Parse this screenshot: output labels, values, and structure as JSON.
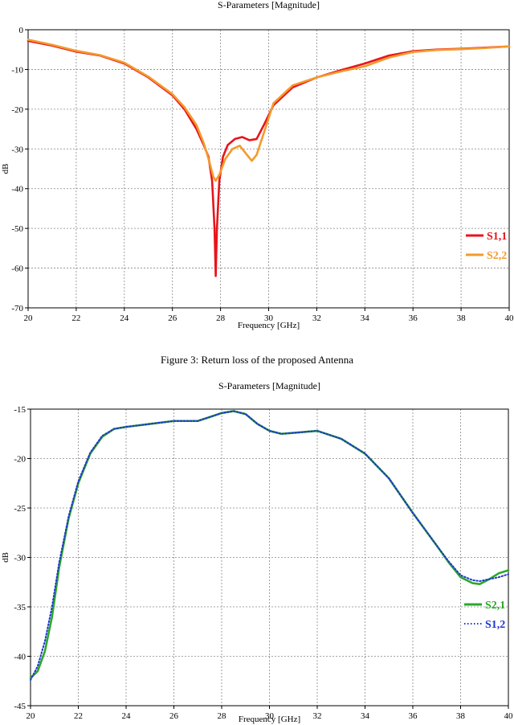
{
  "caption": "Figure 3: Return loss of the proposed Antenna",
  "chart_data": [
    {
      "type": "line",
      "title": "S-Parameters [Magnitude]",
      "xlabel": "Frequency [GHz]",
      "ylabel": "dB",
      "xlim": [
        20,
        40
      ],
      "ylim": [
        -70,
        0
      ],
      "xticks": [
        "20",
        "22",
        "24",
        "26",
        "28",
        "30",
        "32",
        "34",
        "36",
        "38",
        "40"
      ],
      "yticks": [
        "0",
        "-10",
        "-20",
        "-30",
        "-40",
        "-50",
        "-60",
        "-70"
      ],
      "grid": true,
      "legend_position": "bottom-right",
      "series": [
        {
          "name": "S1,1",
          "color": "#e8141b",
          "style": "solid",
          "points": [
            [
              20,
              -2.8
            ],
            [
              21,
              -4
            ],
            [
              22,
              -5.5
            ],
            [
              23,
              -6.5
            ],
            [
              24,
              -8.5
            ],
            [
              25,
              -12
            ],
            [
              26,
              -16.5
            ],
            [
              26.5,
              -20
            ],
            [
              27,
              -25
            ],
            [
              27.3,
              -29
            ],
            [
              27.5,
              -32
            ],
            [
              27.65,
              -38
            ],
            [
              27.75,
              -50
            ],
            [
              27.8,
              -62
            ],
            [
              27.85,
              -50
            ],
            [
              27.95,
              -38
            ],
            [
              28.1,
              -32
            ],
            [
              28.3,
              -29
            ],
            [
              28.6,
              -27.5
            ],
            [
              28.9,
              -27
            ],
            [
              29.2,
              -27.8
            ],
            [
              29.5,
              -27.5
            ],
            [
              29.8,
              -24
            ],
            [
              30.2,
              -19
            ],
            [
              31,
              -14.5
            ],
            [
              32,
              -12
            ],
            [
              33,
              -10.2
            ],
            [
              34,
              -8.5
            ],
            [
              35,
              -6.5
            ],
            [
              36,
              -5.4
            ],
            [
              37,
              -5
            ],
            [
              38,
              -4.8
            ],
            [
              39,
              -4.5
            ],
            [
              40,
              -4.2
            ]
          ]
        },
        {
          "name": "S2,2",
          "color": "#f39a2c",
          "style": "solid",
          "points": [
            [
              20,
              -2.5
            ],
            [
              21,
              -3.8
            ],
            [
              22,
              -5.3
            ],
            [
              23,
              -6.4
            ],
            [
              24,
              -8.3
            ],
            [
              25,
              -11.8
            ],
            [
              26,
              -16.2
            ],
            [
              26.5,
              -19.5
            ],
            [
              27,
              -24
            ],
            [
              27.3,
              -28.5
            ],
            [
              27.5,
              -32.5
            ],
            [
              27.7,
              -37
            ],
            [
              27.8,
              -38
            ],
            [
              27.95,
              -36.5
            ],
            [
              28.2,
              -32.5
            ],
            [
              28.5,
              -30
            ],
            [
              28.8,
              -29.2
            ],
            [
              29.1,
              -31.5
            ],
            [
              29.3,
              -33
            ],
            [
              29.5,
              -31.5
            ],
            [
              29.8,
              -26
            ],
            [
              30.2,
              -18.5
            ],
            [
              31,
              -14
            ],
            [
              32,
              -12
            ],
            [
              33,
              -10.5
            ],
            [
              34,
              -9.2
            ],
            [
              35,
              -7
            ],
            [
              36,
              -5.6
            ],
            [
              37,
              -5.1
            ],
            [
              38,
              -4.9
            ],
            [
              39,
              -4.6
            ],
            [
              40,
              -4.2
            ]
          ]
        }
      ]
    },
    {
      "type": "line",
      "title": "S-Parameters [Magnitude]",
      "xlabel": "Frequency [GHz]",
      "ylabel": "dB",
      "xlim": [
        20,
        40
      ],
      "ylim": [
        -45,
        -15
      ],
      "xticks": [
        "20",
        "22",
        "24",
        "26",
        "28",
        "30",
        "32",
        "34",
        "36",
        "38",
        "40"
      ],
      "yticks": [
        "-15",
        "-20",
        "-25",
        "-30",
        "-35",
        "-40",
        "-45"
      ],
      "grid": true,
      "legend_position": "bottom-right",
      "series": [
        {
          "name": "S2,1",
          "color": "#2aa82a",
          "style": "solid",
          "points": [
            [
              20,
              -42.2
            ],
            [
              20.3,
              -41.5
            ],
            [
              20.6,
              -39.5
            ],
            [
              20.9,
              -36
            ],
            [
              21.2,
              -31
            ],
            [
              21.6,
              -26
            ],
            [
              22,
              -22.5
            ],
            [
              22.5,
              -19.5
            ],
            [
              23,
              -17.8
            ],
            [
              23.5,
              -17
            ],
            [
              24,
              -16.8
            ],
            [
              25,
              -16.5
            ],
            [
              26,
              -16.2
            ],
            [
              27,
              -16.2
            ],
            [
              27.5,
              -15.8
            ],
            [
              28,
              -15.4
            ],
            [
              28.5,
              -15.2
            ],
            [
              29,
              -15.5
            ],
            [
              29.5,
              -16.5
            ],
            [
              30,
              -17.2
            ],
            [
              30.5,
              -17.5
            ],
            [
              31,
              -17.4
            ],
            [
              32,
              -17.2
            ],
            [
              33,
              -18
            ],
            [
              34,
              -19.5
            ],
            [
              35,
              -22
            ],
            [
              36,
              -25.5
            ],
            [
              37,
              -28.8
            ],
            [
              37.5,
              -30.5
            ],
            [
              38,
              -32
            ],
            [
              38.5,
              -32.6
            ],
            [
              38.8,
              -32.7
            ],
            [
              39.2,
              -32.2
            ],
            [
              39.6,
              -31.6
            ],
            [
              40,
              -31.3
            ]
          ]
        },
        {
          "name": "S1,2",
          "color": "#1f35cf",
          "style": "dotted",
          "points": [
            [
              20,
              -42.4
            ],
            [
              20.3,
              -41
            ],
            [
              20.6,
              -38.5
            ],
            [
              20.9,
              -35
            ],
            [
              21.2,
              -30.5
            ],
            [
              21.6,
              -25.8
            ],
            [
              22,
              -22.3
            ],
            [
              22.5,
              -19.4
            ],
            [
              23,
              -17.7
            ],
            [
              23.5,
              -17
            ],
            [
              24,
              -16.8
            ],
            [
              25,
              -16.5
            ],
            [
              26,
              -16.2
            ],
            [
              27,
              -16.2
            ],
            [
              27.5,
              -15.8
            ],
            [
              28,
              -15.4
            ],
            [
              28.5,
              -15.2
            ],
            [
              29,
              -15.5
            ],
            [
              29.5,
              -16.5
            ],
            [
              30,
              -17.2
            ],
            [
              30.5,
              -17.5
            ],
            [
              31,
              -17.4
            ],
            [
              32,
              -17.2
            ],
            [
              33,
              -18
            ],
            [
              34,
              -19.5
            ],
            [
              35,
              -22
            ],
            [
              36,
              -25.5
            ],
            [
              37,
              -28.8
            ],
            [
              37.5,
              -30.4
            ],
            [
              38,
              -31.8
            ],
            [
              38.5,
              -32.3
            ],
            [
              38.8,
              -32.4
            ],
            [
              39.2,
              -32.2
            ],
            [
              39.6,
              -32
            ],
            [
              40,
              -31.7
            ]
          ]
        }
      ]
    }
  ]
}
